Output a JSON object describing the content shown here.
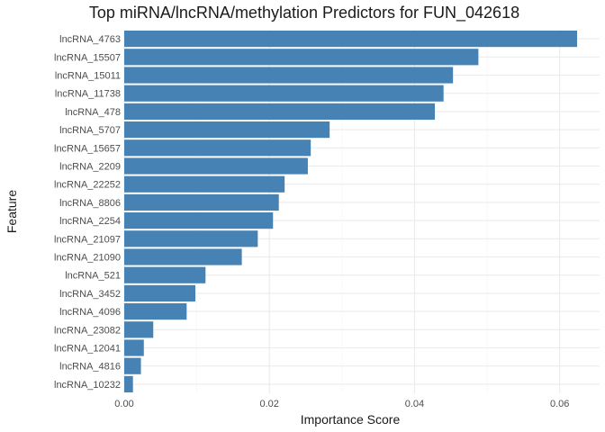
{
  "chart_data": {
    "type": "bar",
    "orientation": "horizontal",
    "title": "Top miRNA/lncRNA/methylation Predictors for FUN_042618",
    "xlabel": "Importance Score",
    "ylabel": "Feature",
    "categories": [
      "lncRNA_4763",
      "lncRNA_15507",
      "lncRNA_15011",
      "lncRNA_11738",
      "lncRNA_478",
      "lncRNA_5707",
      "lncRNA_15657",
      "lncRNA_2209",
      "lncRNA_22252",
      "lncRNA_8806",
      "lncRNA_2254",
      "lncRNA_21097",
      "lncRNA_21090",
      "lncRNA_521",
      "lncRNA_3452",
      "lncRNA_4096",
      "lncRNA_23082",
      "lncRNA_12041",
      "lncRNA_4816",
      "lncRNA_10232"
    ],
    "values": [
      0.0624,
      0.0488,
      0.0453,
      0.044,
      0.0428,
      0.0283,
      0.0257,
      0.0253,
      0.0221,
      0.0213,
      0.0205,
      0.0184,
      0.0162,
      0.0112,
      0.0098,
      0.0086,
      0.004,
      0.0027,
      0.0023,
      0.0012
    ],
    "xlim": [
      0,
      0.0655
    ],
    "xticks": [
      0.0,
      0.02,
      0.04,
      0.06
    ],
    "xtick_labels": [
      "0.00",
      "0.02",
      "0.04",
      "0.06"
    ],
    "grid": true,
    "legend": "none",
    "bar_color": "#4682B4",
    "grid_color": "#ebebeb"
  }
}
